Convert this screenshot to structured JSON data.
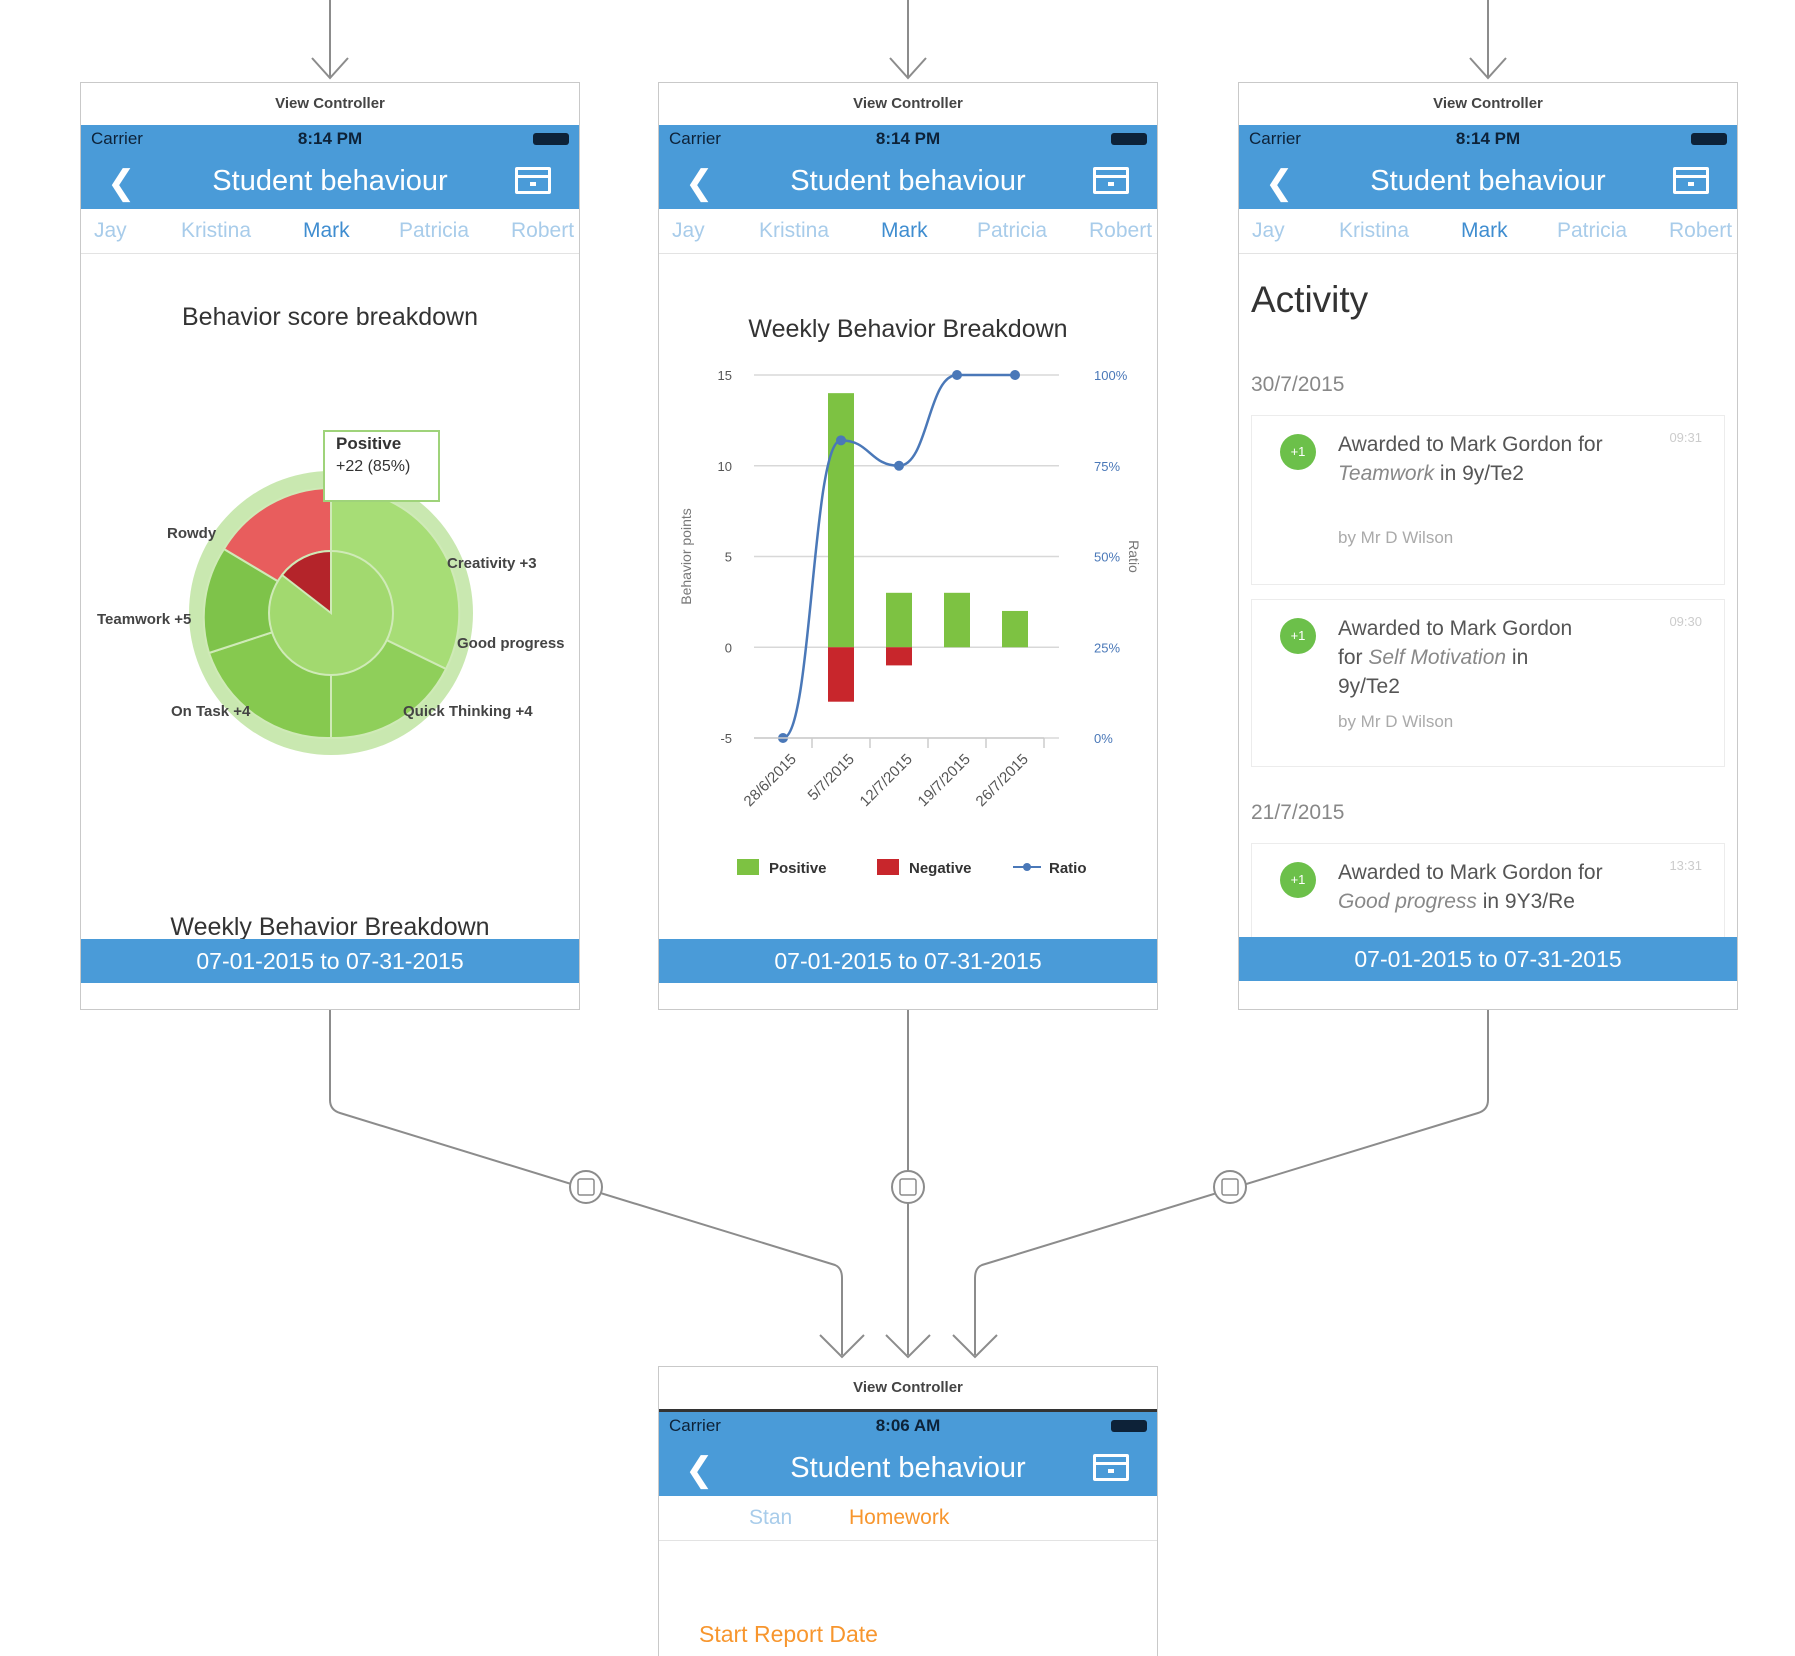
{
  "colors": {
    "nav_blue": "#4a9bd8",
    "positive": "#7dc242",
    "negative": "#c8262c",
    "ratio_line": "#4a78b8",
    "homework_orange": "#f7962e"
  },
  "vc_label": "View Controller",
  "status": {
    "carrier": "Carrier",
    "time_top": "8:14 PM",
    "time_bottom": "8:06 AM"
  },
  "nav_title": "Student behaviour",
  "tabs": [
    "Jay",
    "Kristina",
    "Mark",
    "Patricia",
    "Robert"
  ],
  "footer_range": "07-01-2015 to 07-31-2015",
  "screen1": {
    "title": "Behavior score breakdown",
    "bottom_title": "Weekly Behavior Breakdown",
    "tooltip": {
      "label": "Positive",
      "value": "+22 (85%)"
    },
    "segment_labels": {
      "rowdy": "Rowdy",
      "teamwork": "Teamwork +5",
      "creativity": "Creativity +3",
      "good_progress": "Good progress",
      "quick_thinking": "Quick Thinking +4",
      "on_task": "On Task +4"
    }
  },
  "screen3": {
    "heading": "Activity",
    "groups": [
      {
        "date": "30/7/2015",
        "items": [
          {
            "badge": "+1",
            "pre": "Awarded to Mark Gordon for ",
            "behaviour": "Teamwork",
            "post": " in 9y/Te2",
            "by": "by Mr D Wilson",
            "time": "09:31"
          },
          {
            "badge": "+1",
            "pre": "Awarded to Mark Gordon for ",
            "behaviour": "Self Motivation",
            "post": " in 9y/Te2",
            "by": "by Mr D Wilson",
            "time": "09:30"
          }
        ]
      },
      {
        "date": "21/7/2015",
        "items": [
          {
            "badge": "+1",
            "pre": "Awarded to Mark Gordon for ",
            "behaviour": "Good progress",
            "post": " in 9Y3/Re",
            "by": "",
            "time": "13:31"
          }
        ]
      }
    ]
  },
  "screen4": {
    "tabs": [
      "Stan",
      "Homework"
    ],
    "start_label": "Start Report Date"
  },
  "chart_data": {
    "type": "bar",
    "title": "Weekly Behavior Breakdown",
    "ylabel": "Behavior points",
    "y2label": "Ratio",
    "categories": [
      "28/6/2015",
      "5/7/2015",
      "12/7/2015",
      "19/7/2015",
      "26/7/2015"
    ],
    "ylim": [
      -5,
      15
    ],
    "yticks": [
      "15",
      "10",
      "5",
      "0",
      "-5"
    ],
    "y2ticks": [
      "100%",
      "75%",
      "50%",
      "25%",
      "0%"
    ],
    "series": [
      {
        "name": "Positive",
        "values": [
          0,
          14,
          3,
          3,
          2
        ]
      },
      {
        "name": "Negative",
        "values": [
          0,
          -3,
          -1,
          0,
          0
        ]
      },
      {
        "name": "Ratio",
        "values": [
          0,
          82,
          75,
          100,
          100
        ]
      }
    ],
    "legend": "bottom"
  }
}
